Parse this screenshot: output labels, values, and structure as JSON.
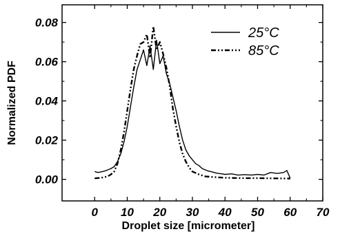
{
  "chart_data": {
    "type": "line",
    "xlabel": "Droplet size [micrometer]",
    "ylabel": "Normalized PDF",
    "xlim": [
      -10,
      70
    ],
    "ylim": [
      -0.011,
      0.089
    ],
    "x_ticks": [
      "0",
      "10",
      "20",
      "30",
      "40",
      "50",
      "60",
      "70"
    ],
    "y_ticks": [
      "0.00",
      "0.02",
      "0.04",
      "0.06",
      "0.08"
    ],
    "grid": false,
    "legend_position": "top-right",
    "series": [
      {
        "name": "25°C",
        "style": "solid",
        "x": [
          0,
          1,
          2,
          3,
          4,
          5,
          6,
          7,
          8,
          9,
          10,
          11,
          12,
          13,
          14,
          15,
          16,
          17,
          18,
          19,
          20,
          21,
          22,
          23,
          24,
          25,
          26,
          27,
          28,
          29,
          30,
          31,
          32,
          33,
          34,
          35,
          36,
          37,
          38,
          39,
          40,
          42,
          44,
          46,
          48,
          50,
          52,
          54,
          56,
          58,
          59,
          60
        ],
        "y": [
          0.004,
          0.0035,
          0.0038,
          0.0042,
          0.0048,
          0.0055,
          0.0065,
          0.009,
          0.013,
          0.019,
          0.027,
          0.037,
          0.047,
          0.056,
          0.061,
          0.066,
          0.058,
          0.068,
          0.056,
          0.071,
          0.059,
          0.063,
          0.054,
          0.049,
          0.042,
          0.035,
          0.027,
          0.02,
          0.015,
          0.012,
          0.01,
          0.008,
          0.007,
          0.0055,
          0.0048,
          0.0042,
          0.0038,
          0.0033,
          0.003,
          0.0028,
          0.0025,
          0.0028,
          0.0022,
          0.0024,
          0.0022,
          0.0025,
          0.0022,
          0.0035,
          0.003,
          0.0035,
          0.0045,
          0.0005
        ]
      },
      {
        "name": "85°C",
        "style": "dash-dot-dot",
        "x": [
          0,
          2,
          4,
          5,
          6,
          7,
          8,
          9,
          10,
          11,
          12,
          13,
          14,
          15,
          16,
          17,
          18,
          19,
          20,
          21,
          22,
          23,
          24,
          25,
          26,
          27,
          28,
          29,
          30,
          32,
          34,
          36,
          38,
          40,
          45,
          50,
          55,
          60
        ],
        "y": [
          0.0005,
          0.0008,
          0.0015,
          0.0025,
          0.004,
          0.008,
          0.015,
          0.024,
          0.035,
          0.046,
          0.056,
          0.063,
          0.069,
          0.07,
          0.074,
          0.062,
          0.078,
          0.066,
          0.07,
          0.064,
          0.057,
          0.048,
          0.036,
          0.027,
          0.019,
          0.013,
          0.009,
          0.006,
          0.004,
          0.0025,
          0.0015,
          0.0012,
          0.001,
          0.0008,
          0.0006,
          0.0006,
          0.0005,
          0.0004
        ]
      }
    ]
  }
}
